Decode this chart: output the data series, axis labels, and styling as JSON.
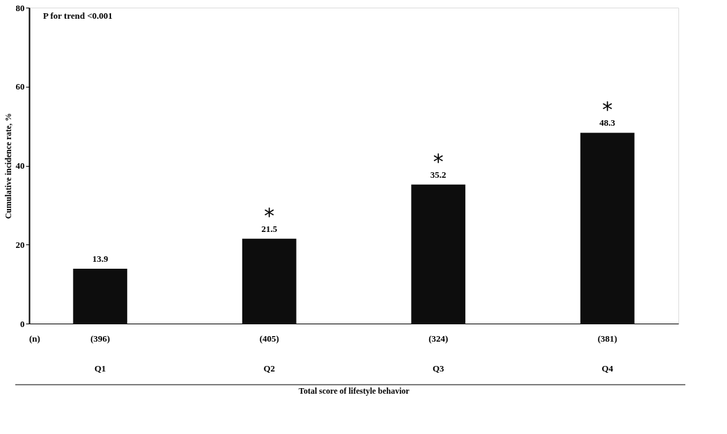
{
  "chart_data": {
    "type": "bar",
    "categories": [
      "Q1",
      "Q2",
      "Q3",
      "Q4"
    ],
    "values": [
      13.9,
      21.5,
      35.2,
      48.3
    ],
    "color": "#0d0d0d",
    "ylabel": "Cumulative incidence rate, %",
    "xlabel": "Total score of lifestyle behavior",
    "ylim": [
      0,
      80
    ],
    "yticks": [
      0,
      20,
      40,
      60,
      80
    ],
    "grid": false,
    "data_labels": true,
    "annotations": [
      "P for trend <0.001",
      "(n)",
      "(396)",
      "(405)",
      "(324)",
      "(381)",
      "*",
      "*",
      "*"
    ]
  }
}
